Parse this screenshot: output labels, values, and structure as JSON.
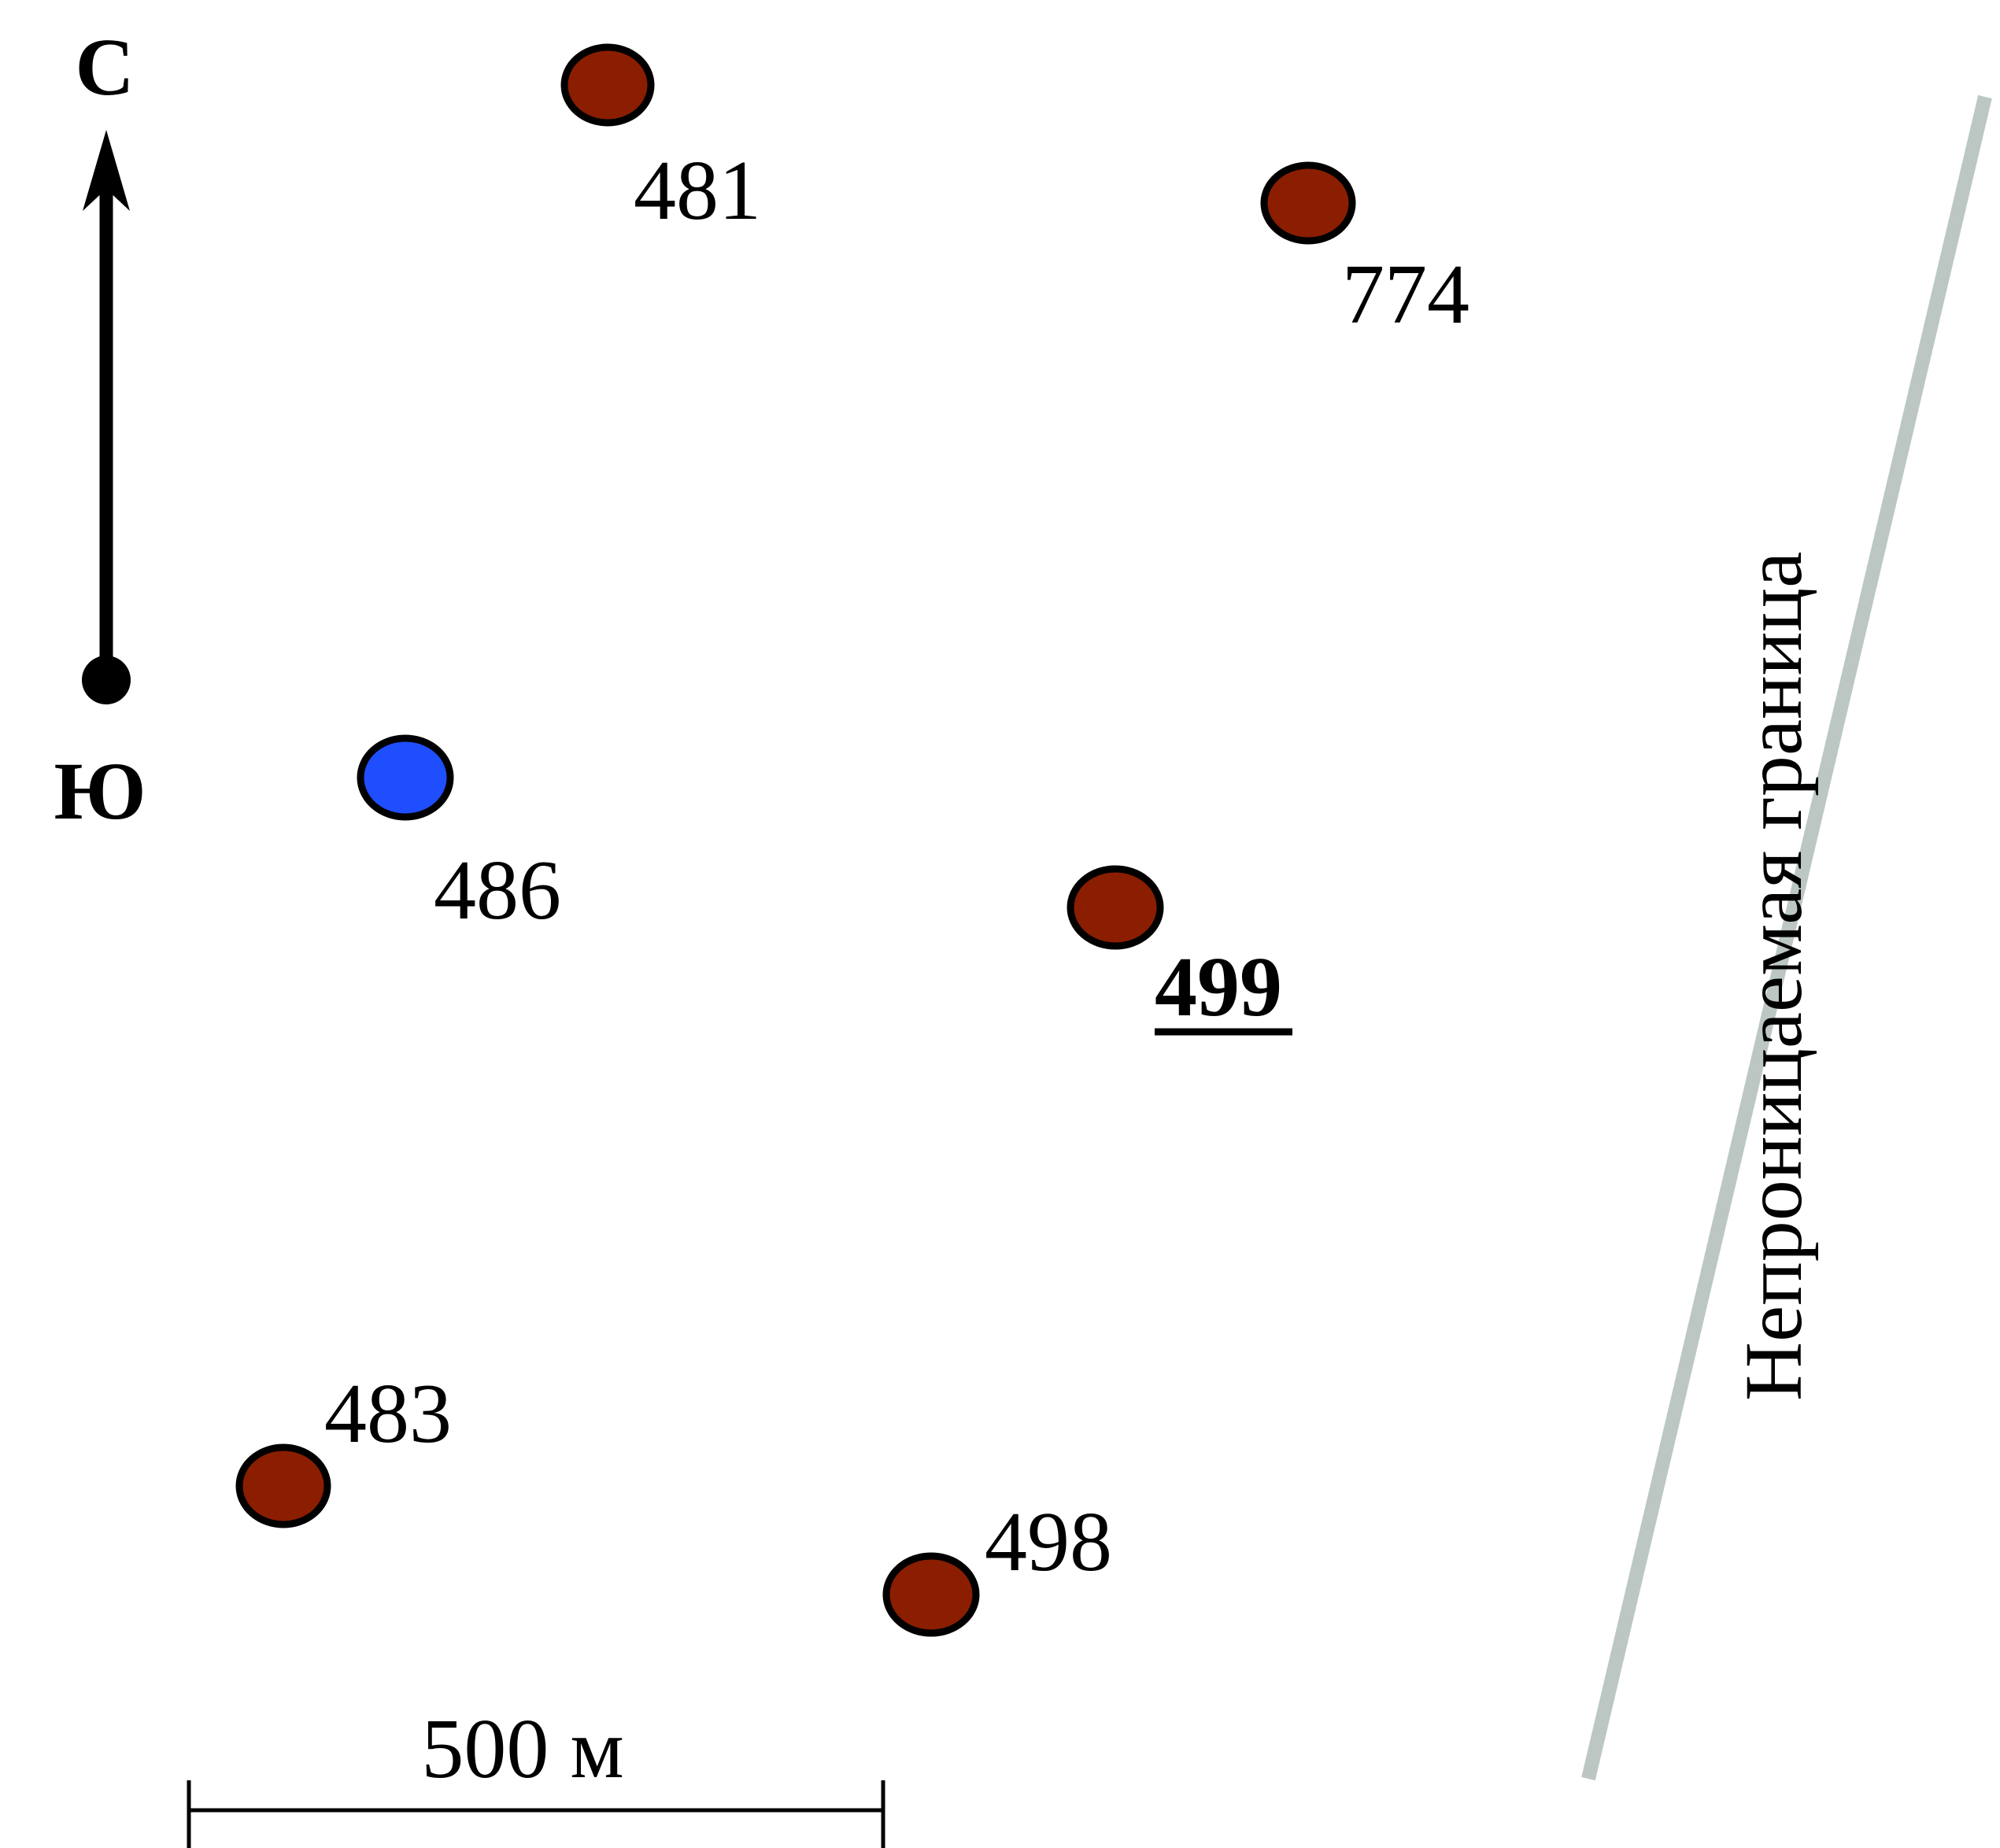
{
  "title": "",
  "compass": {
    "north": "С",
    "south": "Ю"
  },
  "scale": {
    "label": "500 м"
  },
  "boundary": {
    "label": "Непроницаемая граница",
    "color": "#bcc7c3"
  },
  "colors": {
    "producer": "#8b1e00",
    "injector": "#1f4eff",
    "outline": "#000000"
  },
  "wells": [
    {
      "id": "481",
      "type": "producer"
    },
    {
      "id": "774",
      "type": "producer"
    },
    {
      "id": "486",
      "type": "injector"
    },
    {
      "id": "499",
      "type": "producer",
      "highlighted": true
    },
    {
      "id": "483",
      "type": "producer"
    },
    {
      "id": "498",
      "type": "producer"
    }
  ]
}
